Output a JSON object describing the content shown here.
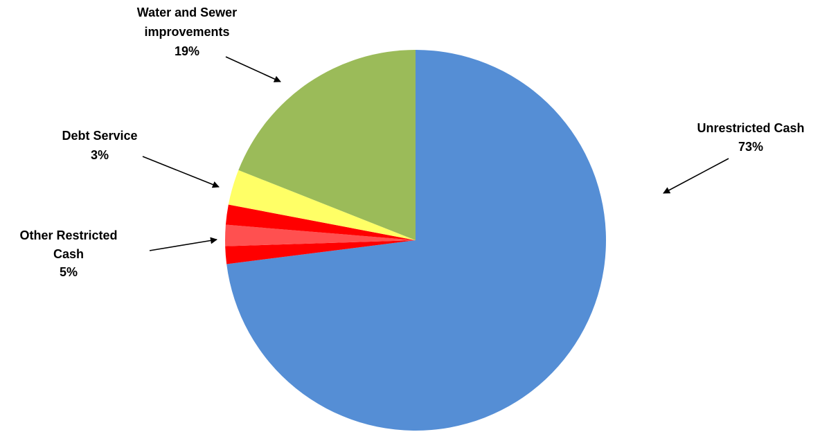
{
  "chart_data": {
    "type": "pie",
    "title": "",
    "start_angle_deg": 0,
    "direction": "clockwise",
    "slices": [
      {
        "name": "Unrestricted Cash",
        "value": 73,
        "color": "#558ed5"
      },
      {
        "name": "Other Restricted Cash (part 1)",
        "value": 1.5,
        "color": "#ff0000"
      },
      {
        "name": "Other Restricted Cash (part 2)",
        "value": 1.8,
        "color": "#ff5050"
      },
      {
        "name": "Other Restricted Cash (part 3)",
        "value": 1.7,
        "color": "#ff0000"
      },
      {
        "name": "Debt Service",
        "value": 3,
        "color": "#ffff66"
      },
      {
        "name": "Water and Sewer improvements",
        "value": 19,
        "color": "#9bbb59"
      }
    ],
    "labels": [
      {
        "lines": [
          "Water and Sewer",
          "improvements",
          "19%"
        ]
      },
      {
        "lines": [
          "Debt Service",
          "3%"
        ]
      },
      {
        "lines": [
          "Other Restricted",
          "Cash",
          "5%"
        ]
      },
      {
        "lines": [
          "Unrestricted Cash",
          "73%"
        ]
      }
    ]
  }
}
